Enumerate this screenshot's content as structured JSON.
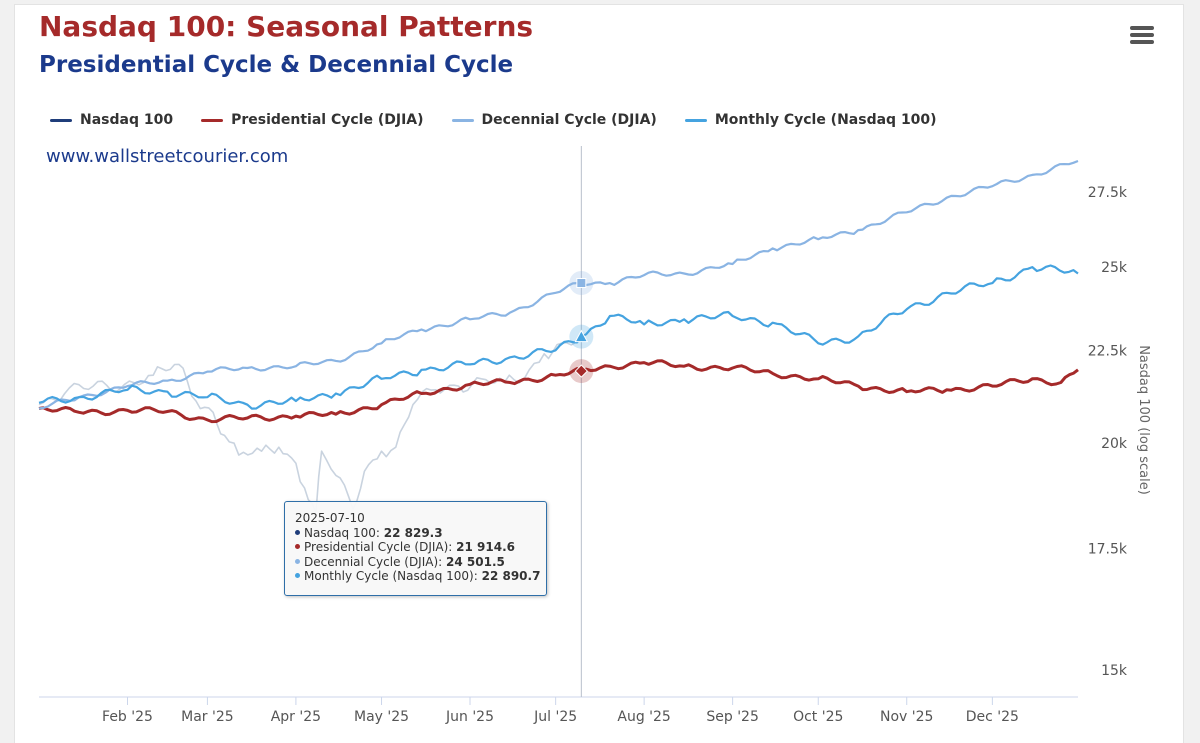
{
  "title": "Nasdaq 100: Seasonal Patterns",
  "subtitle": "Presidential Cycle & Decennial Cycle",
  "credit": "www.wallstreetcourier.com",
  "menu_icon": "hamburger-menu-icon",
  "legend": [
    {
      "name": "Nasdaq 100",
      "color": "#1f3d7a"
    },
    {
      "name": "Presidential Cycle (DJIA)",
      "color": "#a52a2a"
    },
    {
      "name": "Decennial Cycle (DJIA)",
      "color": "#8ab4e3"
    },
    {
      "name": "Monthly Cycle (Nasdaq 100)",
      "color": "#45a3e0"
    }
  ],
  "tooltip": {
    "date": "2025-07-10",
    "rows": [
      {
        "label": "Nasdaq 100: ",
        "value": "22 829.3",
        "color": "#1f3d7a"
      },
      {
        "label": "Presidential Cycle (DJIA): ",
        "value": "21 914.6",
        "color": "#a52a2a"
      },
      {
        "label": "Decennial Cycle (DJIA): ",
        "value": "24 501.5",
        "color": "#8ab4e3"
      },
      {
        "label": "Monthly Cycle (Nasdaq 100): ",
        "value": "22 890.7",
        "color": "#45a3e0"
      }
    ]
  },
  "chart_data": {
    "type": "line",
    "title": "Nasdaq 100: Seasonal Patterns",
    "subtitle": "Presidential Cycle & Decennial Cycle",
    "ylabel": "Nasdaq 100 (log scale)",
    "yscale": "log",
    "ylim": [
      14500,
      29000
    ],
    "xlim": [
      "2025-01-01",
      "2025-12-31"
    ],
    "yticks": [
      15000,
      17500,
      20000,
      22500,
      25000,
      27500
    ],
    "ytick_labels": [
      "15k",
      "17.5k",
      "20k",
      "22.5k",
      "25k",
      "27.5k"
    ],
    "xticks": [
      "2025-02-01",
      "2025-03-01",
      "2025-04-01",
      "2025-05-01",
      "2025-06-01",
      "2025-07-01",
      "2025-08-01",
      "2025-09-01",
      "2025-10-01",
      "2025-11-01",
      "2025-12-01"
    ],
    "xtick_labels": [
      "Feb '25",
      "Mar '25",
      "Apr '25",
      "May '25",
      "Jun '25",
      "Jul '25",
      "Aug '25",
      "Sep '25",
      "Oct '25",
      "Nov '25",
      "Dec '25"
    ],
    "crosshair_date": "2025-07-10",
    "series": [
      {
        "name": "Nasdaq 100",
        "color": "#c9d3df",
        "points": [
          [
            "2025-01-01",
            21000
          ],
          [
            "2025-01-10",
            21300
          ],
          [
            "2025-01-20",
            21500
          ],
          [
            "2025-01-31",
            21550
          ],
          [
            "2025-02-10",
            21800
          ],
          [
            "2025-02-19",
            22100
          ],
          [
            "2025-02-25",
            21100
          ],
          [
            "2025-03-03",
            20800
          ],
          [
            "2025-03-07",
            20200
          ],
          [
            "2025-03-12",
            19700
          ],
          [
            "2025-03-20",
            19800
          ],
          [
            "2025-03-26",
            19900
          ],
          [
            "2025-04-01",
            19500
          ],
          [
            "2025-04-04",
            18900
          ],
          [
            "2025-04-08",
            18300
          ],
          [
            "2025-04-10",
            19800
          ],
          [
            "2025-04-15",
            19200
          ],
          [
            "2025-04-21",
            18400
          ],
          [
            "2025-04-25",
            19300
          ],
          [
            "2025-05-01",
            19800
          ],
          [
            "2025-05-06",
            19900
          ],
          [
            "2025-05-12",
            21000
          ],
          [
            "2025-05-20",
            21400
          ],
          [
            "2025-05-28",
            21500
          ],
          [
            "2025-06-05",
            21700
          ],
          [
            "2025-06-13",
            21600
          ],
          [
            "2025-06-20",
            21700
          ],
          [
            "2025-06-27",
            22400
          ],
          [
            "2025-07-03",
            22700
          ],
          [
            "2025-07-10",
            22829.3
          ]
        ]
      },
      {
        "name": "Presidential Cycle (DJIA)",
        "color": "#a52a2a",
        "points": [
          [
            "2025-01-01",
            20900
          ],
          [
            "2025-01-15",
            20800
          ],
          [
            "2025-02-01",
            20850
          ],
          [
            "2025-02-15",
            20820
          ],
          [
            "2025-03-01",
            20600
          ],
          [
            "2025-03-15",
            20650
          ],
          [
            "2025-04-01",
            20700
          ],
          [
            "2025-04-15",
            20750
          ],
          [
            "2025-05-01",
            21000
          ],
          [
            "2025-05-15",
            21300
          ],
          [
            "2025-06-01",
            21550
          ],
          [
            "2025-06-15",
            21600
          ],
          [
            "2025-07-01",
            21800
          ],
          [
            "2025-07-10",
            21914.6
          ],
          [
            "2025-07-20",
            22050
          ],
          [
            "2025-08-01",
            22150
          ],
          [
            "2025-08-15",
            22050
          ],
          [
            "2025-09-01",
            22000
          ],
          [
            "2025-09-15",
            21850
          ],
          [
            "2025-10-01",
            21700
          ],
          [
            "2025-10-15",
            21500
          ],
          [
            "2025-11-01",
            21350
          ],
          [
            "2025-11-15",
            21400
          ],
          [
            "2025-12-01",
            21500
          ],
          [
            "2025-12-15",
            21700
          ],
          [
            "2025-12-25",
            21600
          ],
          [
            "2025-12-31",
            21950
          ]
        ]
      },
      {
        "name": "Decennial Cycle (DJIA)",
        "color": "#8ab4e3",
        "points": [
          [
            "2025-01-01",
            20900
          ],
          [
            "2025-01-15",
            21200
          ],
          [
            "2025-02-01",
            21500
          ],
          [
            "2025-02-15",
            21650
          ],
          [
            "2025-03-01",
            21900
          ],
          [
            "2025-03-15",
            22000
          ],
          [
            "2025-04-01",
            22050
          ],
          [
            "2025-04-15",
            22200
          ],
          [
            "2025-05-01",
            22700
          ],
          [
            "2025-05-15",
            23100
          ],
          [
            "2025-06-01",
            23400
          ],
          [
            "2025-06-15",
            23600
          ],
          [
            "2025-07-01",
            24200
          ],
          [
            "2025-07-10",
            24501.5
          ],
          [
            "2025-07-20",
            24500
          ],
          [
            "2025-08-01",
            24750
          ],
          [
            "2025-08-15",
            24800
          ],
          [
            "2025-09-01",
            25100
          ],
          [
            "2025-09-15",
            25600
          ],
          [
            "2025-10-01",
            25900
          ],
          [
            "2025-10-15",
            26200
          ],
          [
            "2025-11-01",
            26800
          ],
          [
            "2025-11-15",
            27300
          ],
          [
            "2025-12-01",
            27700
          ],
          [
            "2025-12-15",
            28100
          ],
          [
            "2025-12-31",
            28600
          ]
        ]
      },
      {
        "name": "Monthly Cycle (Nasdaq 100)",
        "color": "#45a3e0",
        "points": [
          [
            "2025-01-01",
            21050
          ],
          [
            "2025-01-15",
            21200
          ],
          [
            "2025-02-01",
            21400
          ],
          [
            "2025-02-15",
            21350
          ],
          [
            "2025-03-01",
            21200
          ],
          [
            "2025-03-15",
            21000
          ],
          [
            "2025-04-01",
            21100
          ],
          [
            "2025-04-15",
            21300
          ],
          [
            "2025-05-01",
            21700
          ],
          [
            "2025-05-15",
            21950
          ],
          [
            "2025-06-01",
            22100
          ],
          [
            "2025-06-15",
            22300
          ],
          [
            "2025-07-01",
            22500
          ],
          [
            "2025-07-10",
            22890.7
          ],
          [
            "2025-07-20",
            23500
          ],
          [
            "2025-08-01",
            23250
          ],
          [
            "2025-08-15",
            23400
          ],
          [
            "2025-09-01",
            23500
          ],
          [
            "2025-09-15",
            23300
          ],
          [
            "2025-10-01",
            22700
          ],
          [
            "2025-10-15",
            22900
          ],
          [
            "2025-11-01",
            23700
          ],
          [
            "2025-11-15",
            24200
          ],
          [
            "2025-12-01",
            24500
          ],
          [
            "2025-12-15",
            25000
          ],
          [
            "2025-12-31",
            24800
          ]
        ]
      }
    ]
  }
}
